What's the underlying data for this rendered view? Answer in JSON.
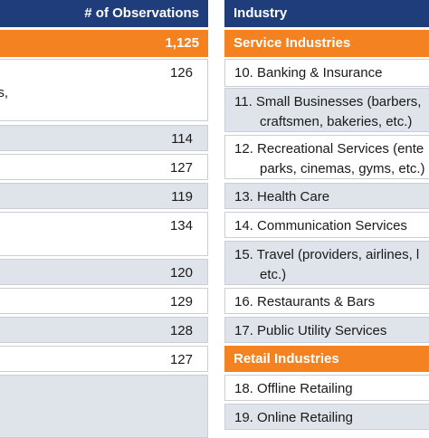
{
  "left_table": {
    "header": "# of Observations",
    "total": "1,125",
    "rows": [
      {
        "label": "es,",
        "value": "126"
      },
      {
        "value": "114"
      },
      {
        "value": "127"
      },
      {
        "value": "119"
      },
      {
        "value": "134"
      },
      {
        "value": "120"
      },
      {
        "value": "129"
      },
      {
        "value": "128"
      },
      {
        "value": "127"
      }
    ]
  },
  "right_table": {
    "header": "Industry",
    "rows": [
      {
        "group": "Service Industries"
      },
      {
        "lines": [
          "10. Banking & Insurance"
        ]
      },
      {
        "lines": [
          "11. Small Businesses (barbers,",
          "craftsmen, bakeries, etc.)"
        ]
      },
      {
        "lines": [
          "12. Recreational Services (ente",
          "parks, cinemas, gyms, etc.)"
        ]
      },
      {
        "lines": [
          "13. Health Care"
        ]
      },
      {
        "lines": [
          "14. Communication Services"
        ]
      },
      {
        "lines": [
          "15. Travel (providers, airlines, l",
          "etc.)"
        ]
      },
      {
        "lines": [
          "16. Restaurants & Bars"
        ]
      },
      {
        "lines": [
          "17. Public Utility Services"
        ]
      },
      {
        "group": "Retail Industries"
      },
      {
        "lines": [
          "18. Offline Retailing"
        ]
      },
      {
        "lines": [
          "19. Online Retailing"
        ]
      }
    ]
  }
}
